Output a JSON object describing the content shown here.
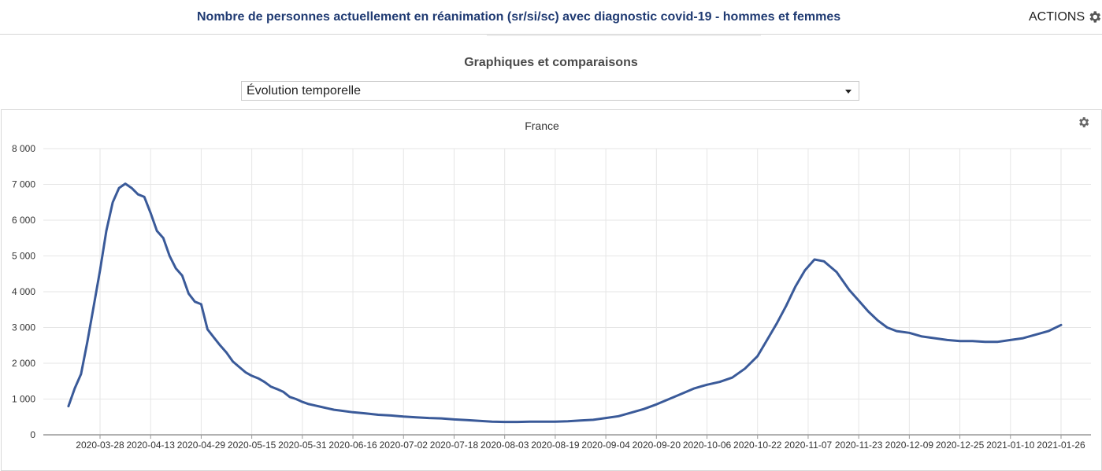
{
  "header": {
    "title": "Nombre de personnes actuellement en réanimation (sr/si/sc) avec diagnostic covid-19 - hommes et femmes",
    "actions_label": "ACTIONS",
    "actions_icon": "gear-icon"
  },
  "section": {
    "title": "Graphiques et comparaisons"
  },
  "selector": {
    "selected": "Évolution temporelle",
    "icon": "chevron-down-icon"
  },
  "chart_settings_icon": "gear-icon",
  "colors": {
    "line": "#3a5a99",
    "title": "#1f3a72",
    "grid": "#e6e6e6",
    "axis": "#999999"
  },
  "chart_data": {
    "type": "line",
    "title": "France",
    "xlabel": "",
    "ylabel": "",
    "ylim": [
      0,
      8000
    ],
    "yticks": [
      0,
      1000,
      2000,
      3000,
      4000,
      5000,
      6000,
      7000,
      8000
    ],
    "ytick_labels": [
      "0",
      "1 000",
      "2 000",
      "3 000",
      "4 000",
      "5 000",
      "6 000",
      "7 000",
      "8 000"
    ],
    "xticks": [
      "2020-03-28",
      "2020-04-13",
      "2020-04-29",
      "2020-05-15",
      "2020-05-31",
      "2020-06-16",
      "2020-07-02",
      "2020-07-18",
      "2020-08-03",
      "2020-08-19",
      "2020-09-04",
      "2020-09-20",
      "2020-10-06",
      "2020-10-22",
      "2020-11-07",
      "2020-11-23",
      "2020-12-09",
      "2020-12-25",
      "2021-01-10",
      "2021-01-26"
    ],
    "grid": true,
    "legend": "none",
    "series": [
      {
        "x": [
          "2020-03-18",
          "2020-03-20",
          "2020-03-22",
          "2020-03-24",
          "2020-03-26",
          "2020-03-28",
          "2020-03-30",
          "2020-04-01",
          "2020-04-03",
          "2020-04-05",
          "2020-04-07",
          "2020-04-09",
          "2020-04-11",
          "2020-04-13",
          "2020-04-15",
          "2020-04-17",
          "2020-04-19",
          "2020-04-21",
          "2020-04-23",
          "2020-04-25",
          "2020-04-27",
          "2020-04-29",
          "2020-05-01",
          "2020-05-03",
          "2020-05-05",
          "2020-05-07",
          "2020-05-09",
          "2020-05-11",
          "2020-05-13",
          "2020-05-15",
          "2020-05-17",
          "2020-05-19",
          "2020-05-21",
          "2020-05-23",
          "2020-05-25",
          "2020-05-27",
          "2020-05-29",
          "2020-05-31",
          "2020-06-02",
          "2020-06-04",
          "2020-06-06",
          "2020-06-08",
          "2020-06-10",
          "2020-06-12",
          "2020-06-16",
          "2020-06-20",
          "2020-06-24",
          "2020-06-28",
          "2020-07-02",
          "2020-07-06",
          "2020-07-10",
          "2020-07-14",
          "2020-07-18",
          "2020-07-22",
          "2020-07-26",
          "2020-07-30",
          "2020-08-03",
          "2020-08-07",
          "2020-08-11",
          "2020-08-15",
          "2020-08-19",
          "2020-08-23",
          "2020-08-27",
          "2020-08-31",
          "2020-09-04",
          "2020-09-08",
          "2020-09-12",
          "2020-09-16",
          "2020-09-20",
          "2020-09-24",
          "2020-09-28",
          "2020-10-02",
          "2020-10-06",
          "2020-10-10",
          "2020-10-14",
          "2020-10-18",
          "2020-10-22",
          "2020-10-25",
          "2020-10-28",
          "2020-10-31",
          "2020-11-03",
          "2020-11-06",
          "2020-11-09",
          "2020-11-12",
          "2020-11-14",
          "2020-11-16",
          "2020-11-18",
          "2020-11-20",
          "2020-11-23",
          "2020-11-26",
          "2020-11-29",
          "2020-12-02",
          "2020-12-05",
          "2020-12-09",
          "2020-12-13",
          "2020-12-17",
          "2020-12-21",
          "2020-12-25",
          "2020-12-29",
          "2021-01-02",
          "2021-01-06",
          "2021-01-10",
          "2021-01-14",
          "2021-01-18",
          "2021-01-22",
          "2021-01-26"
        ],
        "y": [
          800,
          1300,
          1700,
          2600,
          3600,
          4600,
          5700,
          6500,
          6900,
          7020,
          6900,
          6720,
          6650,
          6200,
          5700,
          5500,
          5000,
          4650,
          4450,
          3950,
          3720,
          3650,
          2950,
          2720,
          2500,
          2300,
          2050,
          1900,
          1750,
          1650,
          1580,
          1480,
          1350,
          1280,
          1200,
          1060,
          1000,
          920,
          860,
          820,
          780,
          740,
          700,
          680,
          630,
          600,
          560,
          540,
          510,
          490,
          470,
          460,
          430,
          410,
          390,
          370,
          360,
          360,
          370,
          370,
          370,
          380,
          400,
          420,
          470,
          520,
          620,
          720,
          850,
          1000,
          1150,
          1300,
          1400,
          1480,
          1600,
          1850,
          2200,
          2650,
          3100,
          3600,
          4150,
          4600,
          4900,
          4850,
          4700,
          4550,
          4300,
          4050,
          3750,
          3450,
          3200,
          3000,
          2900,
          2850,
          2750,
          2700,
          2650,
          2620,
          2620,
          2600,
          2600,
          2650,
          2700,
          2800,
          2900,
          3070
        ]
      }
    ]
  }
}
